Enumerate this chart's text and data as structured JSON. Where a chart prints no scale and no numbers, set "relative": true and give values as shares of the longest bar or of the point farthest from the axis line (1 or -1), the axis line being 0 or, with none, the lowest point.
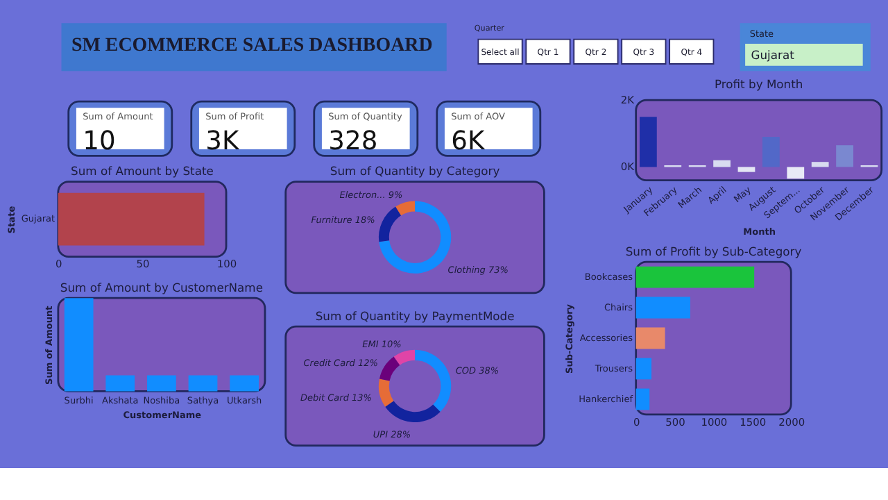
{
  "chart_data": [
    {
      "type": "other",
      "title": "SM ECOMMERCE SALES DASHBOARD",
      "annotations": [
        "Quarter",
        "Select all",
        "Qtr 1",
        "Qtr 2",
        "Qtr 3",
        "Qtr 4",
        "State",
        "Gujarat"
      ]
    },
    {
      "type": "other",
      "categories": [
        "Sum of Amount",
        "Sum of Profit",
        "Sum of Quantity",
        "Sum of AOV"
      ],
      "value_labels": [
        "10",
        "3K",
        "328",
        "6K"
      ]
    },
    {
      "type": "bar",
      "orientation": "horizontal",
      "title": "Sum of Amount by State",
      "ylabel": "State",
      "categories": [
        "Gujarat"
      ],
      "values": [
        87
      ],
      "color": "#b2434c",
      "xlim": [
        0,
        100
      ],
      "xticks": [
        0,
        50,
        100
      ]
    },
    {
      "type": "bar",
      "relative": true,
      "title": "Sum of Amount by CustomerName",
      "xlabel": "CustomerName",
      "ylabel": "Sum of Amount",
      "categories": [
        "Surbhi",
        "Akshata",
        "Noshiba",
        "Sathya",
        "Utkarsh"
      ],
      "values": [
        1,
        0.17,
        0.17,
        0.17,
        0.17
      ],
      "color": "#118dff"
    },
    {
      "type": "donut",
      "title": "Sum of Quantity by Category",
      "categories": [
        "Clothing",
        "Furniture",
        "Electron..."
      ],
      "values": [
        73,
        18,
        9
      ],
      "value_labels": [
        "73%",
        "18%",
        "9%"
      ],
      "colors": [
        "#118dff",
        "#12239e",
        "#e66c37"
      ]
    },
    {
      "type": "donut",
      "title": "Sum of Quantity by PaymentMode",
      "categories": [
        "COD",
        "UPI",
        "Debit Card",
        "Credit Card",
        "EMI"
      ],
      "values": [
        38,
        28,
        13,
        12,
        10
      ],
      "value_labels": [
        "38%",
        "28%",
        "13%",
        "12%",
        "10%"
      ],
      "colors": [
        "#118dff",
        "#12239e",
        "#e66c37",
        "#6b007b",
        "#e044a7"
      ]
    },
    {
      "type": "bar",
      "title": "Profit by Month",
      "xlabel": "Month",
      "categories": [
        "January",
        "February",
        "March",
        "April",
        "May",
        "August",
        "Septem...",
        "October",
        "November",
        "December"
      ],
      "values": [
        1500,
        50,
        50,
        200,
        -150,
        900,
        -350,
        150,
        650,
        50
      ],
      "colors": [
        "#1f2fa8",
        "#d8dcf0",
        "#d8dcf0",
        "#d8dcf0",
        "#e4e6f4",
        "#5268c8",
        "#e8eaf6",
        "#d8dcf0",
        "#7a88d0",
        "#d8dcf0"
      ],
      "ylim": [
        -400,
        2000
      ],
      "yticks": [
        {
          "value": 0,
          "label": "0K"
        },
        {
          "value": 2000,
          "label": "2K"
        }
      ]
    },
    {
      "type": "bar",
      "orientation": "horizontal",
      "title": "Sum of Profit by Sub-Category",
      "ylabel": "Sub-Category",
      "categories": [
        "Bookcases",
        "Chairs",
        "Accessories",
        "Trousers",
        "Hankerchief"
      ],
      "values": [
        1525,
        700,
        375,
        200,
        175
      ],
      "colors": [
        "#1ac43c",
        "#118dff",
        "#e8896a",
        "#118dff",
        "#118dff"
      ],
      "xlim": [
        0,
        2000
      ],
      "xticks": [
        0,
        500,
        1000,
        1500,
        2000
      ]
    }
  ]
}
